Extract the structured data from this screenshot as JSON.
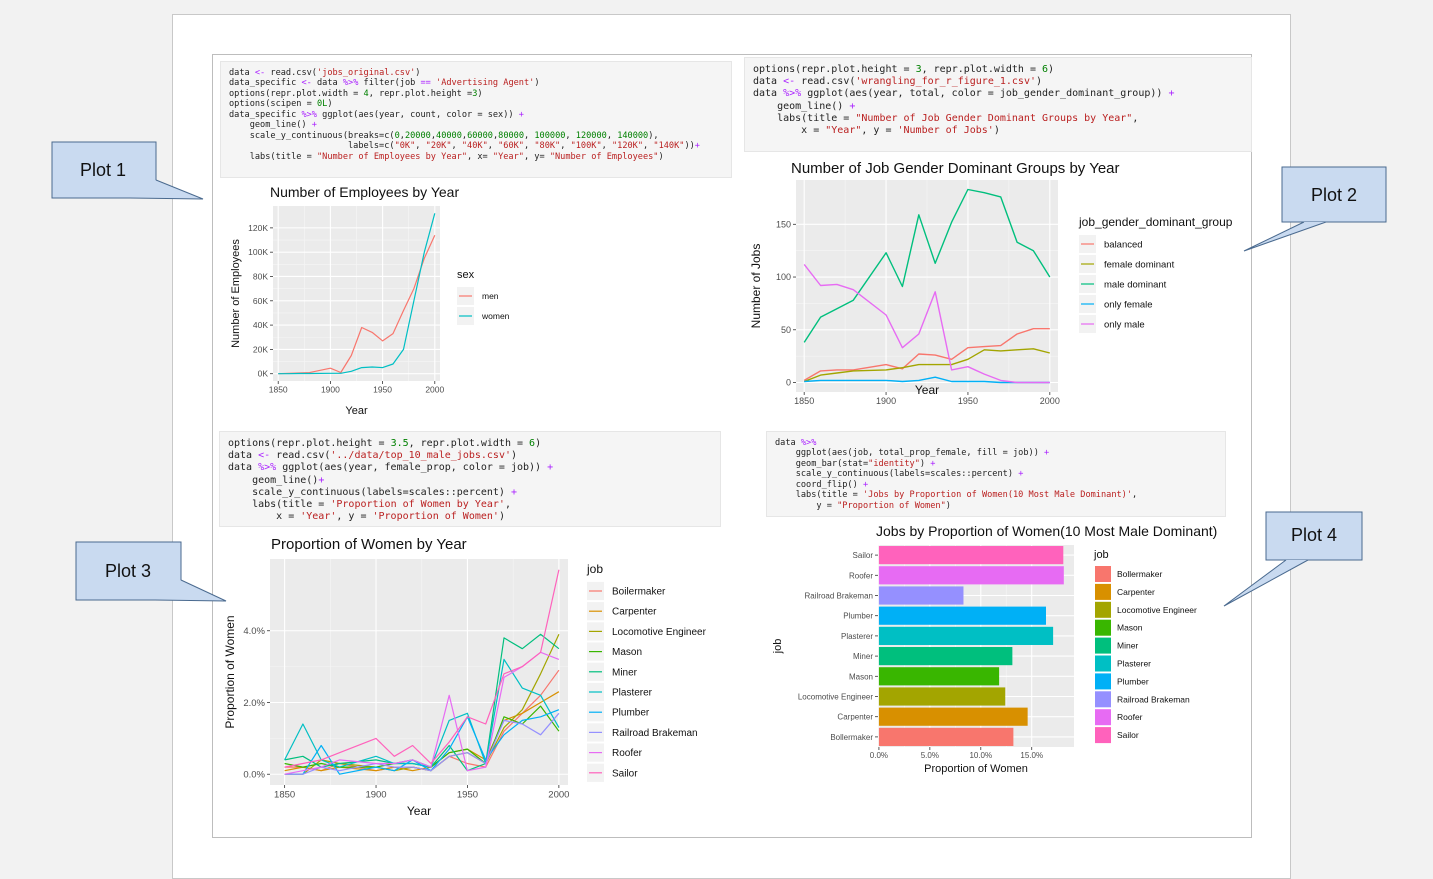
{
  "callouts": [
    {
      "label": "Plot 1"
    },
    {
      "label": "Plot 2"
    },
    {
      "label": "Plot 3"
    },
    {
      "label": "Plot 4"
    }
  ],
  "code": {
    "plot1": [
      "data <- read.csv('jobs_original.csv')",
      "data_specific <- data %>% filter(job == 'Advertising Agent')",
      "options(repr.plot.width = 4, repr.plot.height =3)",
      "options(scipen = 0L)",
      "data_specific %>% ggplot(aes(year, count, color = sex)) +",
      "    geom_line() +",
      "    scale_y_continuous(breaks=c(0,20000,40000,60000,80000, 100000, 120000, 140000),",
      "                       labels=c(\"0K\", \"20K\", \"40K\", \"60K\", \"80K\", \"100K\", \"120K\", \"140K\"))+",
      "    labs(title = \"Number of Employees by Year\", x= \"Year\", y= \"Number of Employees\")"
    ],
    "plot2": [
      "options(repr.plot.height = 3, repr.plot.width = 6)",
      "data <- read.csv('wrangling_for_r_figure_1.csv')",
      "data %>% ggplot(aes(year, total, color = job_gender_dominant_group)) +",
      "    geom_line() +",
      "    labs(title = \"Number of Job Gender Dominant Groups by Year\",",
      "        x = \"Year\", y = 'Number of Jobs')"
    ],
    "plot3": [
      "options(repr.plot.height = 3.5, repr.plot.width = 6)",
      "data <- read.csv('../data/top_10_male_jobs.csv')",
      "data %>% ggplot(aes(year, female_prop, color = job)) +",
      "    geom_line()+",
      "    scale_y_continuous(labels=scales::percent) +",
      "    labs(title = 'Proportion of Women by Year',",
      "        x = 'Year', y = 'Proportion of Women')"
    ],
    "plot4": [
      "data %>%",
      "    ggplot(aes(job, total_prop_female, fill = job)) +",
      "    geom_bar(stat=\"identity\") +",
      "    scale_y_continuous(labels=scales::percent) +",
      "    coord_flip() +",
      "    labs(title = 'Jobs by Proportion of Women(10 Most Male Dominant)',",
      "        y = \"Proportion of Women\")"
    ]
  },
  "chart_data": [
    {
      "type": "line",
      "title": "Number of Employees by Year",
      "xlabel": "Year",
      "ylabel": "Number of Employees",
      "xlim": [
        1845,
        2005
      ],
      "ylim": [
        -6000,
        138000
      ],
      "xticks": [
        1850,
        1900,
        1950,
        2000
      ],
      "yticks": [
        0,
        20000,
        40000,
        60000,
        80000,
        100000,
        120000
      ],
      "ytick_labels": [
        "0K",
        "20K",
        "40K",
        "60K",
        "80K",
        "100K",
        "120K"
      ],
      "legend_title": "sex",
      "legend_position": "right",
      "grid": true,
      "x": [
        1850,
        1860,
        1870,
        1880,
        1900,
        1910,
        1920,
        1930,
        1940,
        1950,
        1960,
        1970,
        1980,
        1990,
        2000
      ],
      "series": [
        {
          "name": "men",
          "color": "#F8766D",
          "values": [
            0,
            300,
            600,
            900,
            4500,
            1000,
            15000,
            38000,
            34000,
            27000,
            33000,
            52000,
            70000,
            95000,
            114000
          ]
        },
        {
          "name": "women",
          "color": "#00BFC4",
          "values": [
            0,
            0,
            200,
            200,
            300,
            300,
            2000,
            5000,
            5500,
            5000,
            8000,
            20000,
            60000,
            100000,
            132000
          ]
        }
      ]
    },
    {
      "type": "line",
      "title": "Number of Job Gender Dominant Groups by Year",
      "xlabel": "Year",
      "ylabel": "Number of Jobs",
      "xlim": [
        1845,
        2005
      ],
      "ylim": [
        -9,
        192
      ],
      "xticks": [
        1850,
        1900,
        1950,
        2000
      ],
      "yticks": [
        0,
        50,
        100,
        150
      ],
      "legend_title": "job_gender_dominant_group",
      "legend_position": "right",
      "grid": true,
      "x": [
        1850,
        1860,
        1870,
        1880,
        1900,
        1910,
        1920,
        1930,
        1940,
        1950,
        1960,
        1970,
        1980,
        1990,
        2000
      ],
      "series": [
        {
          "name": "balanced",
          "color": "#F8766D",
          "values": [
            2,
            11,
            12,
            12,
            17,
            13,
            27,
            26,
            22,
            33,
            34,
            35,
            46,
            51,
            51
          ]
        },
        {
          "name": "female dominant",
          "color": "#A3A500",
          "values": [
            1,
            7,
            9,
            11,
            12,
            14,
            17,
            17,
            17,
            22,
            31,
            30,
            31,
            32,
            28
          ]
        },
        {
          "name": "male dominant",
          "color": "#00BF7D",
          "values": [
            38,
            62,
            70,
            78,
            123,
            91,
            159,
            113,
            152,
            183,
            180,
            176,
            133,
            125,
            100
          ]
        },
        {
          "name": "only female",
          "color": "#00B0F6",
          "values": [
            1,
            2,
            2,
            2,
            2,
            1,
            2,
            5,
            1,
            1,
            1,
            0,
            0,
            0,
            0
          ]
        },
        {
          "name": "only male",
          "color": "#E76BF3",
          "values": [
            112,
            92,
            93,
            88,
            64,
            33,
            46,
            86,
            12,
            15,
            8,
            2,
            0,
            0,
            0
          ]
        }
      ]
    },
    {
      "type": "line",
      "title": "Proportion of Women by Year",
      "xlabel": "Year",
      "ylabel": "Proportion of Women",
      "xlim": [
        1842,
        2005
      ],
      "ylim": [
        -0.003,
        0.06
      ],
      "xticks": [
        1850,
        1900,
        1950,
        2000
      ],
      "yticks": [
        0,
        0.02,
        0.04
      ],
      "ytick_labels": [
        "0.0%",
        "2.0%",
        "4.0%"
      ],
      "legend_title": "job",
      "legend_position": "right",
      "grid": true,
      "x": [
        1850,
        1860,
        1870,
        1880,
        1900,
        1910,
        1920,
        1930,
        1940,
        1950,
        1960,
        1970,
        1980,
        1990,
        2000
      ],
      "series": [
        {
          "name": "Boilermaker",
          "color": "#F8766D",
          "values": [
            0.002,
            0.002,
            0.001,
            0.003,
            0.001,
            0.002,
            0.002,
            0.001,
            0.005,
            0.003,
            0.002,
            0.012,
            0.017,
            0.022,
            0.029
          ]
        },
        {
          "name": "Carpenter",
          "color": "#D89000",
          "values": [
            0.001,
            0.002,
            0.001,
            0.002,
            0.001,
            0.002,
            0.001,
            0.002,
            0.006,
            0.007,
            0.004,
            0.015,
            0.017,
            0.02,
            0.023
          ]
        },
        {
          "name": "Locomotive Engineer",
          "color": "#A3A500",
          "values": [
            0.0,
            0.0,
            0.004,
            0.003,
            0.002,
            0.001,
            0.002,
            0.001,
            0.005,
            0.006,
            0.003,
            0.013,
            0.018,
            0.028,
            0.039
          ]
        },
        {
          "name": "Mason",
          "color": "#39B600",
          "values": [
            0.003,
            0.002,
            0.003,
            0.002,
            0.002,
            0.003,
            0.003,
            0.002,
            0.006,
            0.007,
            0.003,
            0.016,
            0.014,
            0.019,
            0.012
          ]
        },
        {
          "name": "Miner",
          "color": "#00BF7D",
          "values": [
            0.004,
            0.005,
            0.002,
            0.003,
            0.004,
            0.003,
            0.004,
            0.002,
            0.008,
            0.001,
            0.003,
            0.038,
            0.035,
            0.039,
            0.035
          ]
        },
        {
          "name": "Plasterer",
          "color": "#00BFC4",
          "values": [
            0.004,
            0.014,
            0.004,
            0.002,
            0.005,
            0.003,
            0.003,
            0.002,
            0.015,
            0.017,
            0.003,
            0.032,
            0.024,
            0.022,
            0.013
          ]
        },
        {
          "name": "Plumber",
          "color": "#00B0F6",
          "values": [
            0.0,
            0.0,
            0.008,
            0.0,
            0.002,
            0.001,
            0.004,
            0.001,
            0.007,
            0.016,
            0.004,
            0.011,
            0.015,
            0.016,
            0.018
          ]
        },
        {
          "name": "Railroad Brakeman",
          "color": "#9590FF",
          "values": [
            0.0,
            0.0,
            0.002,
            0.001,
            0.003,
            0.002,
            0.002,
            0.001,
            0.005,
            0.006,
            0.003,
            0.015,
            0.014,
            0.011,
            0.017
          ]
        },
        {
          "name": "Roofer",
          "color": "#E76BF3",
          "values": [
            0.0,
            0.001,
            0.002,
            0.004,
            0.003,
            0.003,
            0.004,
            0.002,
            0.022,
            0.001,
            0.002,
            0.027,
            0.03,
            0.034,
            0.032
          ]
        },
        {
          "name": "Sailor",
          "color": "#FF62BC",
          "values": [
            0.002,
            0.003,
            0.004,
            0.006,
            0.01,
            0.005,
            0.008,
            0.003,
            0.009,
            0.016,
            0.014,
            0.028,
            0.03,
            0.034,
            0.057
          ]
        }
      ]
    },
    {
      "type": "bar",
      "orientation": "horizontal",
      "title": "Jobs by Proportion of Women(10 Most Male Dominant)",
      "xlabel": "job",
      "ylabel": "Proportion of Women",
      "ylim": [
        -0.0009,
        0.1915
      ],
      "yticks": [
        0,
        0.05,
        0.1,
        0.15
      ],
      "ytick_labels": [
        "0.0%",
        "5.0%",
        "10.0%",
        "15.0%"
      ],
      "legend_title": "job",
      "legend_position": "right",
      "grid": true,
      "categories": [
        "Bollermaker",
        "Carpenter",
        "Locomotive Engineer",
        "Mason",
        "Miner",
        "Plasterer",
        "Plumber",
        "Railroad Brakeman",
        "Roofer",
        "Sailor"
      ],
      "values": [
        0.132,
        0.146,
        0.124,
        0.118,
        0.131,
        0.171,
        0.164,
        0.083,
        0.1815,
        0.181
      ],
      "colors": [
        "#F8766D",
        "#D89000",
        "#A3A500",
        "#39B600",
        "#00BF7D",
        "#00BFC4",
        "#00B0F6",
        "#9590FF",
        "#E76BF3",
        "#FF62BC"
      ]
    }
  ]
}
